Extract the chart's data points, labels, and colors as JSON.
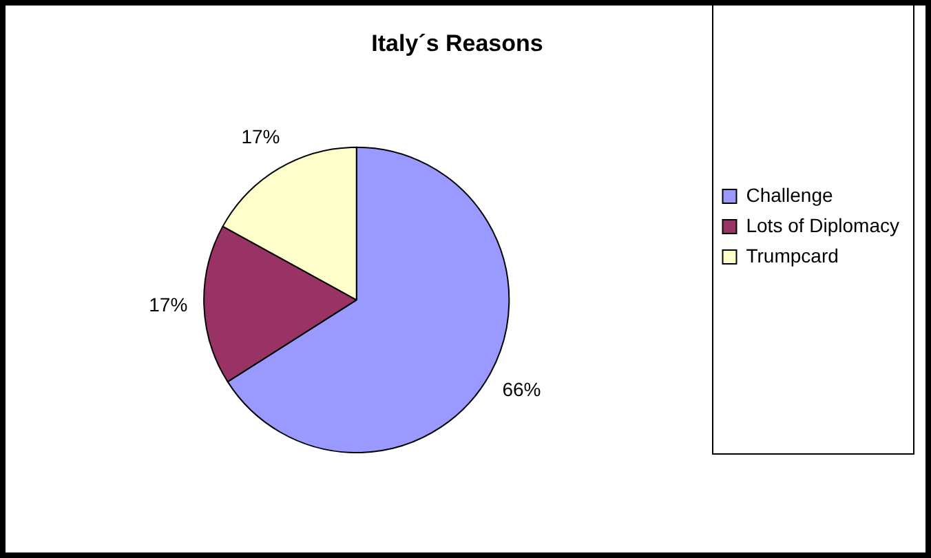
{
  "chart_data": {
    "type": "pie",
    "title": "Italy´s Reasons",
    "categories": [
      "Challenge",
      "Lots of Diplomacy",
      "Trumpcard"
    ],
    "values": [
      66,
      17,
      17
    ],
    "value_labels": [
      "66%",
      "17%",
      "17%"
    ],
    "colors": [
      "#9999ff",
      "#993366",
      "#ffffcc"
    ],
    "legend": "right"
  }
}
